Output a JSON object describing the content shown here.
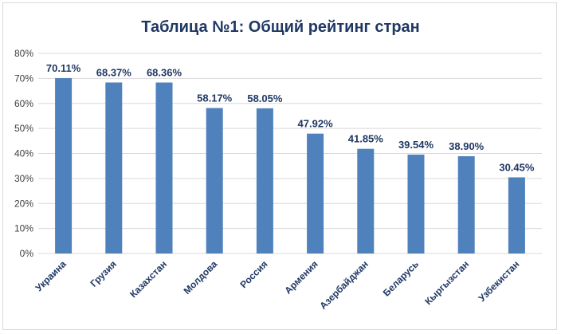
{
  "chart_data": {
    "type": "bar",
    "title": "Таблица №1: Общий рейтинг стран",
    "xlabel": "",
    "ylabel": "",
    "categories": [
      "Украина",
      "Грузия",
      "Казахстан",
      "Молдова",
      "Россия",
      "Армения",
      "Азербайджан",
      "Беларусь",
      "Кыргызстан",
      "Узбекистан"
    ],
    "values": [
      70.11,
      68.37,
      68.36,
      58.17,
      58.05,
      47.92,
      41.85,
      39.54,
      38.9,
      30.45
    ],
    "value_labels": [
      "70.11%",
      "68.37%",
      "68.36%",
      "58.17%",
      "58.05%",
      "47.92%",
      "41.85%",
      "39.54%",
      "38.90%",
      "30.45%"
    ],
    "ylim": [
      0,
      80
    ],
    "y_ticks": [
      0,
      10,
      20,
      30,
      40,
      50,
      60,
      70,
      80
    ],
    "y_tick_labels": [
      "0%",
      "10%",
      "20%",
      "30%",
      "40%",
      "50%",
      "60%",
      "70%",
      "80%"
    ],
    "grid": true,
    "legend": "none",
    "colors": {
      "bar": "#4f81bd",
      "grid": "#d9d9d9",
      "title": "#1f3864",
      "labels": "#1f3864"
    }
  }
}
